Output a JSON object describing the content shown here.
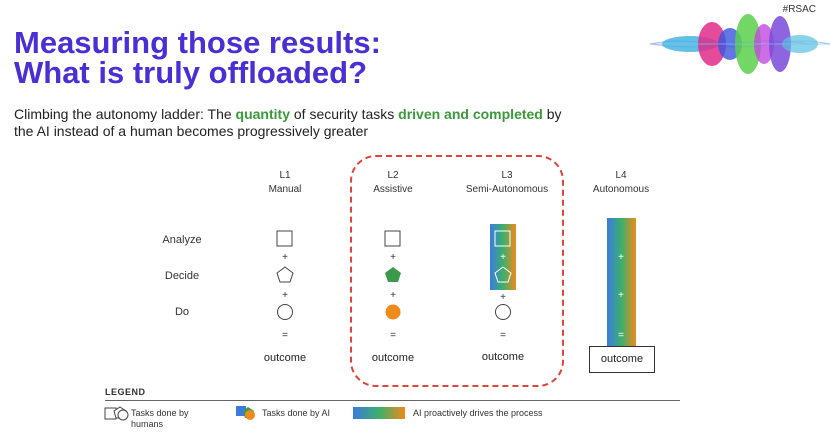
{
  "header": {
    "tag": "#RSAC",
    "title_line1": "Measuring those results:",
    "title_line2": "What is truly offloaded?"
  },
  "subtitle": {
    "part1": "Climbing the autonomy ladder: The ",
    "highlight1": "quantity",
    "part2": " of security tasks ",
    "highlight2": "driven and completed",
    "part3": " by the AI instead of a human becomes progressively greater"
  },
  "levels": [
    {
      "id": "L1",
      "name": "Manual"
    },
    {
      "id": "L2",
      "name": "Assistive"
    },
    {
      "id": "L3",
      "name": "Semi-Autonomous"
    },
    {
      "id": "L4",
      "name": "Autonomous"
    }
  ],
  "rows": {
    "analyze": "Analyze",
    "decide": "Decide",
    "do": "Do"
  },
  "operators": {
    "plus": "+",
    "equals": "="
  },
  "outcome_label": "outcome",
  "colors": {
    "title": "#4a2fd4",
    "highlight": "#3a9a3a",
    "ai_green": "#3a9a4a",
    "ai_orange": "#f08a1c",
    "ai_blue": "#3b7be0",
    "dashed_border": "#e0443c"
  },
  "legend": {
    "title": "LEGEND",
    "humans": "Tasks done by humans",
    "ai": "Tasks done by AI",
    "proactive": "AI proactively drives the process"
  }
}
